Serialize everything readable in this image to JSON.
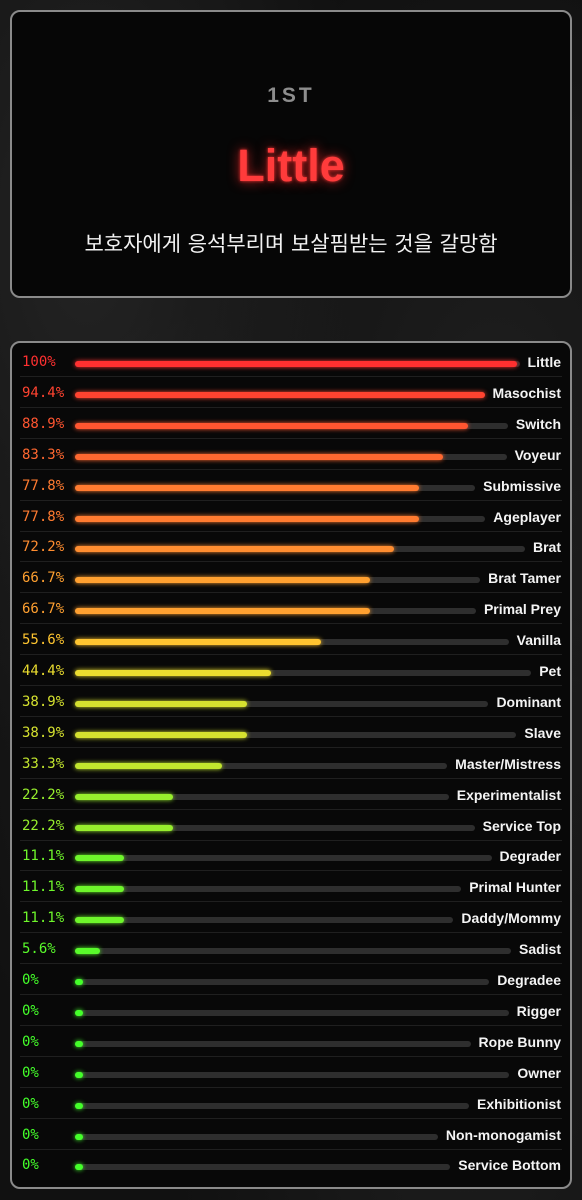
{
  "header": {
    "rank": "1ST",
    "result_title": "Little",
    "description": "보호자에게 응석부리며 보살핌받는 것을 갈망함"
  },
  "colors": {
    "accent": "#ff3b3b",
    "scale_high": "#ff3030",
    "scale_mid": "#ffd830",
    "scale_low": "#44ff2a"
  },
  "chart_data": {
    "type": "bar",
    "orientation": "horizontal",
    "xlim": [
      0,
      100
    ],
    "categories": [
      "Little",
      "Masochist",
      "Switch",
      "Voyeur",
      "Submissive",
      "Ageplayer",
      "Brat",
      "Brat Tamer",
      "Primal Prey",
      "Vanilla",
      "Pet",
      "Dominant",
      "Slave",
      "Master/Mistress",
      "Experimentalist",
      "Service Top",
      "Degrader",
      "Primal Hunter",
      "Daddy/Mommy",
      "Sadist",
      "Degradee",
      "Rigger",
      "Rope Bunny",
      "Owner",
      "Exhibitionist",
      "Non-monogamist",
      "Service Bottom"
    ],
    "values": [
      100,
      94.4,
      88.9,
      83.3,
      77.8,
      77.8,
      72.2,
      66.7,
      66.7,
      55.6,
      44.4,
      38.9,
      38.9,
      33.3,
      22.2,
      22.2,
      11.1,
      11.1,
      11.1,
      5.6,
      0,
      0,
      0,
      0,
      0,
      0,
      0
    ],
    "labels": [
      "100%",
      "94.4%",
      "88.9%",
      "83.3%",
      "77.8%",
      "77.8%",
      "72.2%",
      "66.7%",
      "66.7%",
      "55.6%",
      "44.4%",
      "38.9%",
      "38.9%",
      "33.3%",
      "22.2%",
      "22.2%",
      "11.1%",
      "11.1%",
      "11.1%",
      "5.6%",
      "0%",
      "0%",
      "0%",
      "0%",
      "0%",
      "0%",
      "0%"
    ]
  }
}
